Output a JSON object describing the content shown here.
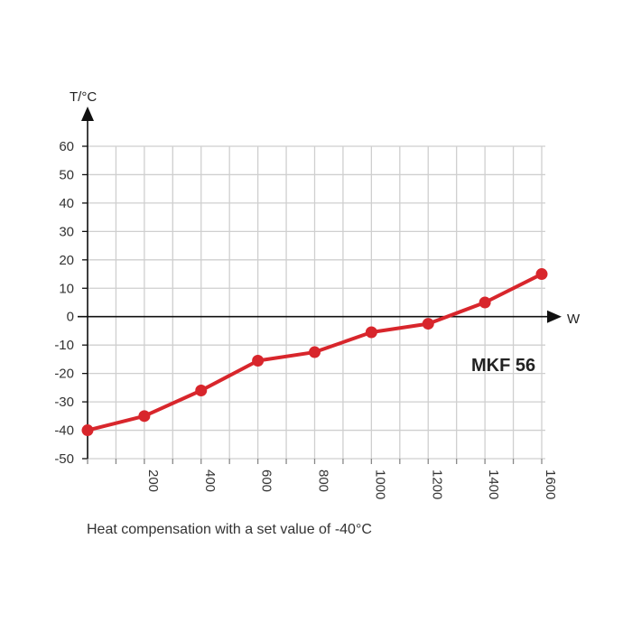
{
  "chart_data": {
    "type": "line",
    "xlabel": "W",
    "ylabel": "T/°C",
    "annotation": "MKF 56",
    "caption": "Heat compensation with a set value of -40°C",
    "xlim": [
      0,
      1600
    ],
    "ylim": [
      -50,
      60
    ],
    "x_ticks": [
      200,
      400,
      600,
      800,
      1000,
      1200,
      1400,
      1600
    ],
    "x_tick_labels": [
      "200",
      "400",
      "600",
      "800",
      "1000",
      "1200",
      "1400",
      "1600"
    ],
    "x_grid_step": 100,
    "y_ticks": [
      60,
      50,
      40,
      30,
      20,
      10,
      0,
      -10,
      -20,
      -30,
      -40,
      -50
    ],
    "y_tick_labels": [
      "60",
      "50",
      "40",
      "30",
      "20",
      "10",
      "0",
      "-10",
      "-20",
      "-30",
      "-40",
      "-50"
    ],
    "grid": true,
    "line_color": "#d8262c",
    "x": [
      0,
      200,
      400,
      600,
      800,
      1000,
      1200,
      1400,
      1600
    ],
    "y": [
      -40,
      -35,
      -26,
      -15.5,
      -12.5,
      -5.5,
      -2.5,
      5,
      15
    ]
  }
}
